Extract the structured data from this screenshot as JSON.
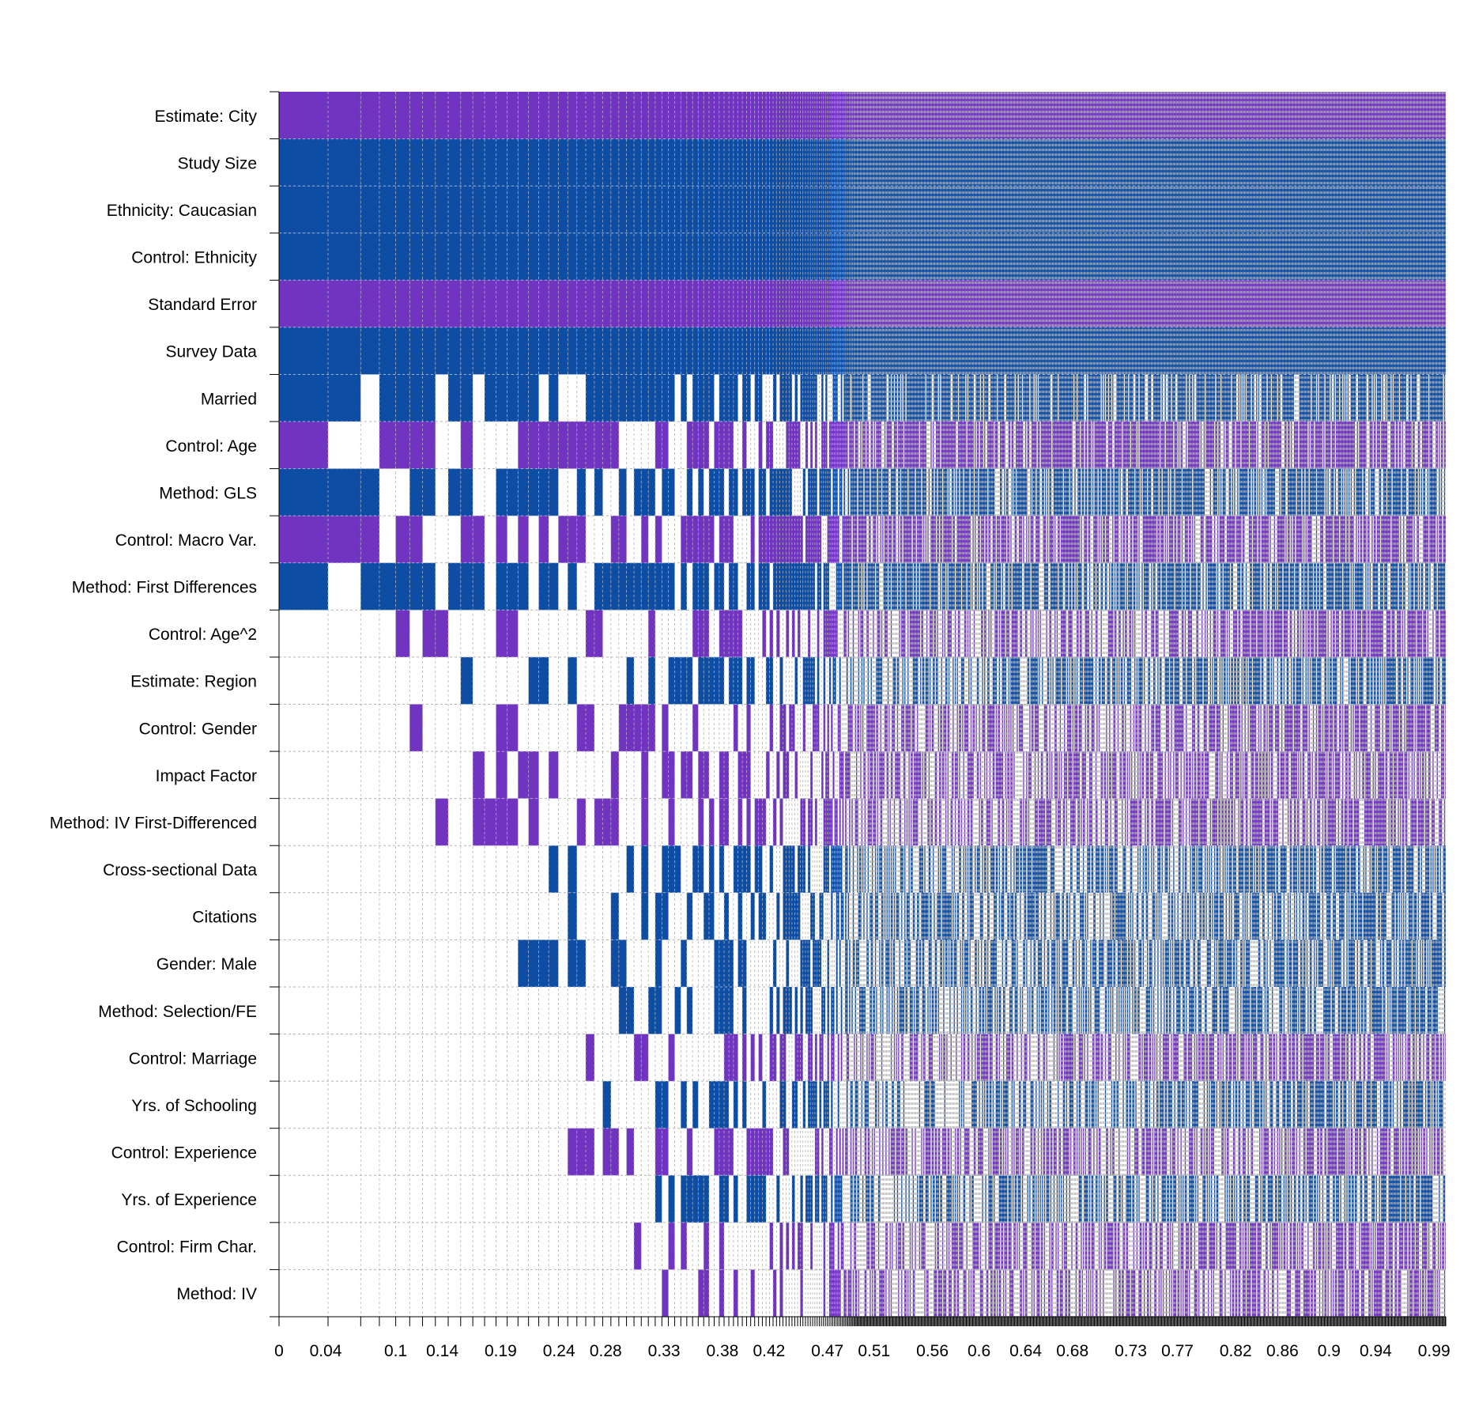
{
  "chart_data": {
    "type": "heatmap",
    "title": "",
    "xlabel": "",
    "ylabel": "",
    "description_of_encoding": "",
    "colors": {
      "positive": "#7034c1",
      "negative": "#0e4da4",
      "absent": "#ffffff",
      "grid": "#b3b3b3"
    },
    "rows": [
      {
        "label": "Estimate: City",
        "sign": "positive",
        "incl_from": 0
      },
      {
        "label": "Study Size",
        "sign": "negative",
        "incl_from": 0
      },
      {
        "label": "Ethnicity: Caucasian",
        "sign": "negative",
        "incl_from": 0
      },
      {
        "label": "Control: Ethnicity",
        "sign": "negative",
        "incl_from": 0
      },
      {
        "label": "Standard Error",
        "sign": "positive",
        "incl_from": 0
      },
      {
        "label": "Survey Data",
        "sign": "negative",
        "incl_from": 0
      },
      {
        "label": "Married",
        "sign": "negative",
        "incl_from": 0
      },
      {
        "label": "Control: Age",
        "sign": "positive",
        "incl_from": 0
      },
      {
        "label": "Method: GLS",
        "sign": "negative",
        "incl_from": 0
      },
      {
        "label": "Control: Macro Var.",
        "sign": "positive",
        "incl_from": 0
      },
      {
        "label": "Method: First Differences",
        "sign": "negative",
        "incl_from": 0
      },
      {
        "label": "Control: Age^2",
        "sign": "positive",
        "incl_from": 0.086
      },
      {
        "label": "Estimate: Region",
        "sign": "negative",
        "incl_from": 0.123
      },
      {
        "label": "Control: Gender",
        "sign": "positive",
        "incl_from": 0.086
      },
      {
        "label": "Impact Factor",
        "sign": "positive",
        "incl_from": 0.112
      },
      {
        "label": "Method: IV First-Differenced",
        "sign": "positive",
        "incl_from": 0.123
      },
      {
        "label": "Cross-sectional Data",
        "sign": "negative",
        "incl_from": 0.184
      },
      {
        "label": "Citations",
        "sign": "negative",
        "incl_from": 0.228
      },
      {
        "label": "Gender: Male",
        "sign": "negative",
        "incl_from": 0.2
      },
      {
        "label": "Method: Selection/FE",
        "sign": "negative",
        "incl_from": 0.271
      },
      {
        "label": "Control: Marriage",
        "sign": "positive",
        "incl_from": 0.263
      },
      {
        "label": "Yrs. of Schooling",
        "sign": "negative",
        "incl_from": 0.277
      },
      {
        "label": "Control: Experience",
        "sign": "positive",
        "incl_from": 0.251
      },
      {
        "label": "Yrs. of Experience",
        "sign": "negative",
        "incl_from": 0.322
      },
      {
        "label": "Control: Firm Char.",
        "sign": "positive",
        "incl_from": 0.306
      },
      {
        "label": "Method: IV",
        "sign": "positive",
        "incl_from": 0.324
      }
    ],
    "x_ticks": [
      "0",
      "0.04",
      "0.1",
      "0.14",
      "0.19",
      "0.24",
      "0.28",
      "0.33",
      "0.38",
      "0.42",
      "0.47",
      "0.51",
      "0.56",
      "0.6",
      "0.64",
      "0.68",
      "0.73",
      "0.77",
      "0.82",
      "0.86",
      "0.9",
      "0.94",
      "0.99"
    ],
    "x_tick_values": [
      0,
      0.04,
      0.1,
      0.14,
      0.19,
      0.24,
      0.28,
      0.33,
      0.38,
      0.42,
      0.47,
      0.51,
      0.56,
      0.6,
      0.64,
      0.68,
      0.73,
      0.77,
      0.82,
      0.86,
      0.9,
      0.94,
      0.99
    ],
    "xlim": [
      0,
      1
    ],
    "grid": true,
    "legend": "none"
  }
}
